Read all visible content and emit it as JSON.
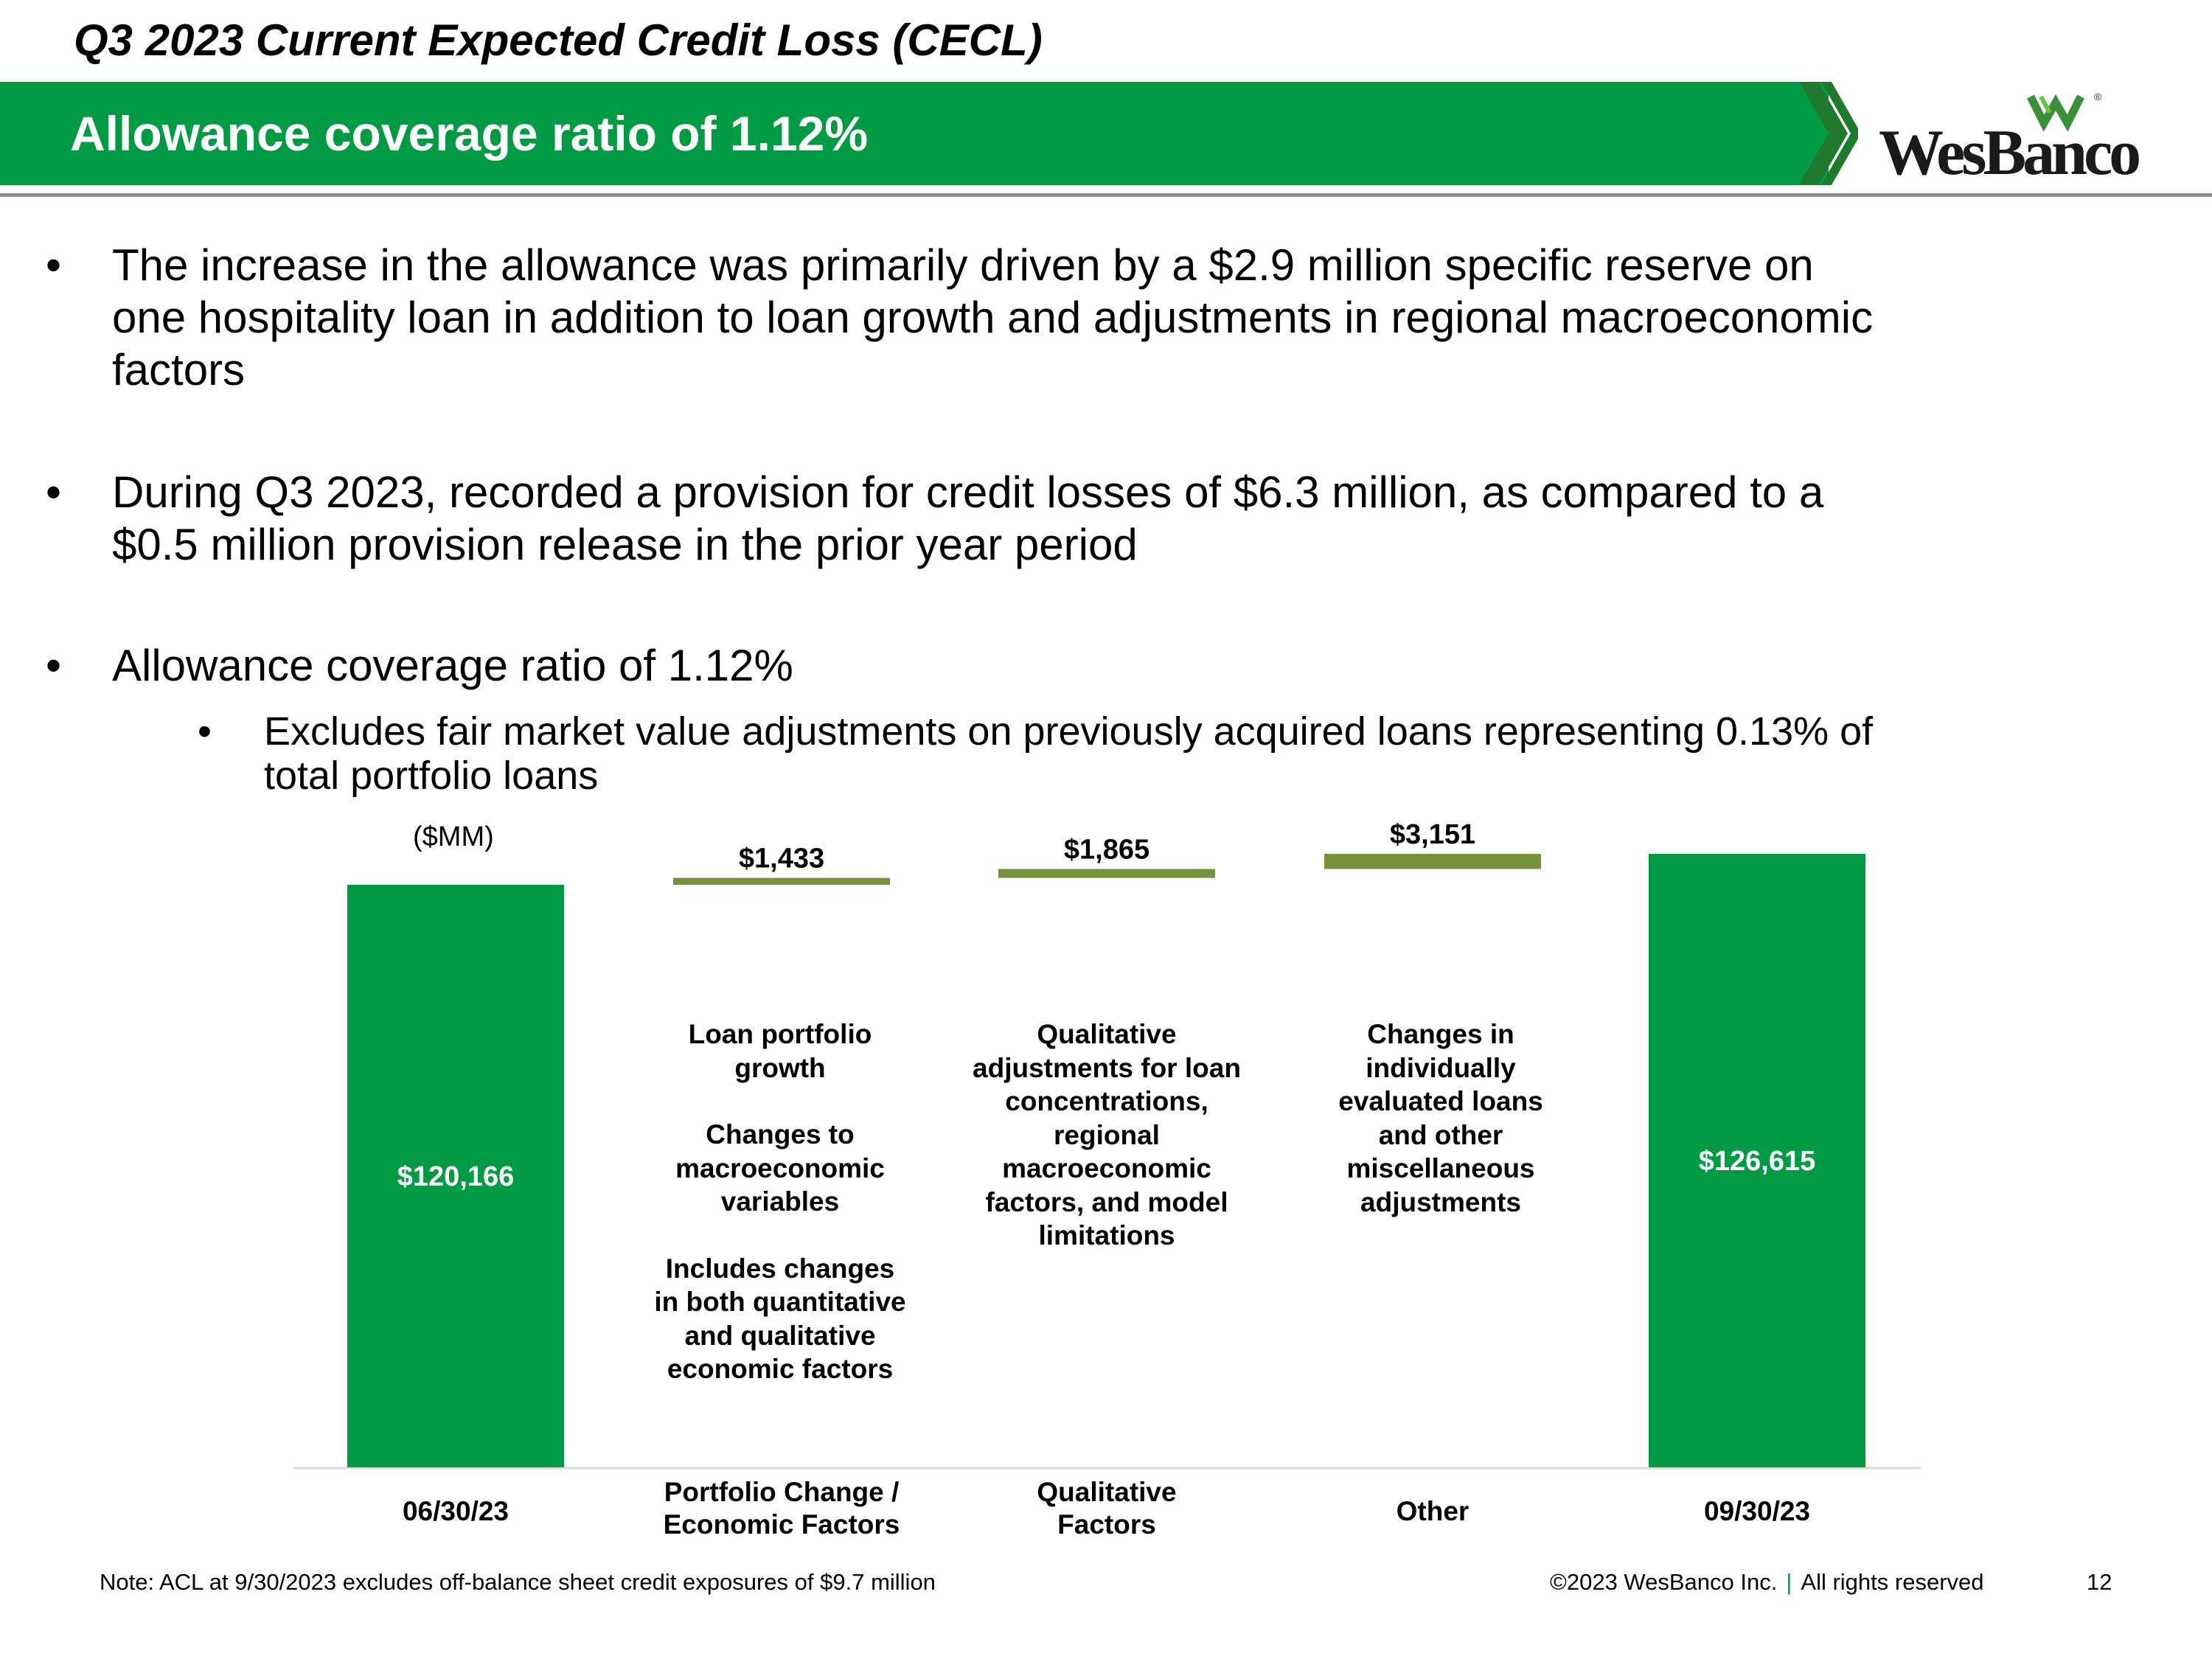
{
  "header": {
    "kicker": "Q3 2023 Current Expected Credit Loss (CECL)",
    "title": "Allowance coverage ratio of 1.12%",
    "logo_text": "WesBanco",
    "logo_mark_icon": "wesbanco-w-logo-icon",
    "brand_color": "#009a44",
    "chevron_color": "#1f7a2e"
  },
  "bullets": [
    {
      "text": "The increase in the allowance was primarily driven by a $2.9 million specific reserve on one hospitality loan in addition to loan growth and adjustments in regional macroeconomic factors",
      "lines": [
        "The increase in the allowance was primarily driven by a $2.9 million specific reserve on",
        "one hospitality loan in addition to loan growth and adjustments in regional macroeconomic",
        "factors"
      ]
    },
    {
      "text": "During Q3 2023, recorded a provision for credit losses of $6.3 million, as compared to a $0.5 million provision release in the prior year period",
      "lines": [
        "During Q3 2023, recorded a provision for credit losses of $6.3 million, as compared to a",
        "$0.5 million provision release in the prior year period"
      ]
    },
    {
      "text": "Allowance coverage ratio of 1.12%",
      "lines": [
        "Allowance coverage ratio of 1.12%"
      ]
    }
  ],
  "sub_bullets": [
    {
      "text": "Excludes fair market value adjustments on previously acquired loans representing 0.13% of total portfolio loans",
      "lines": [
        "Excludes fair market value adjustments on previously acquired loans representing 0.13% of",
        "total portfolio loans"
      ]
    }
  ],
  "chart_data": {
    "type": "bar",
    "subtype": "waterfall",
    "unit_label": "($MM)",
    "categories": [
      "06/30/23",
      "Portfolio Change / Economic Factors",
      "Qualitative Factors",
      "Other",
      "09/30/23"
    ],
    "category_lines": [
      [
        "06/30/23"
      ],
      [
        "Portfolio Change /",
        "Economic Factors"
      ],
      [
        "Qualitative",
        "Factors"
      ],
      [
        "Other"
      ],
      [
        "09/30/23"
      ]
    ],
    "values": [
      120166,
      1433,
      1865,
      3151,
      126615
    ],
    "kinds": [
      "total",
      "increase",
      "increase",
      "increase",
      "total"
    ],
    "data_labels": [
      "$120,166",
      "$1,433",
      "$1,865",
      "$3,151",
      "$126,615"
    ],
    "ylim": [
      0,
      126615
    ],
    "total_color": "#009a44",
    "change_color": "#76923c",
    "total_label_color": "#ffffff",
    "change_label_color": "#000000",
    "grid": false,
    "legend": "none",
    "annotations": [
      {
        "category": "Portfolio Change / Economic Factors",
        "paragraphs": [
          [
            "Loan portfolio",
            "growth"
          ],
          [
            "Changes to",
            "macroeconomic",
            "variables"
          ],
          [
            "Includes changes",
            "in both quantitative",
            "and qualitative",
            "economic factors"
          ]
        ]
      },
      {
        "category": "Qualitative Factors",
        "paragraphs": [
          [
            "Qualitative",
            "adjustments for loan",
            "concentrations,",
            "regional",
            "macroeconomic",
            "factors, and model",
            "limitations"
          ]
        ]
      },
      {
        "category": "Other",
        "paragraphs": [
          [
            "Changes in",
            "individually",
            "evaluated loans",
            "and other",
            "miscellaneous",
            "adjustments"
          ]
        ]
      }
    ]
  },
  "footer": {
    "note": "Note: ACL at 9/30/2023 excludes off-balance sheet credit exposures of $9.7 million",
    "copyright": "©2023 WesBanco Inc.",
    "separator": "|",
    "rights": "All rights reserved",
    "page_number": "12"
  }
}
